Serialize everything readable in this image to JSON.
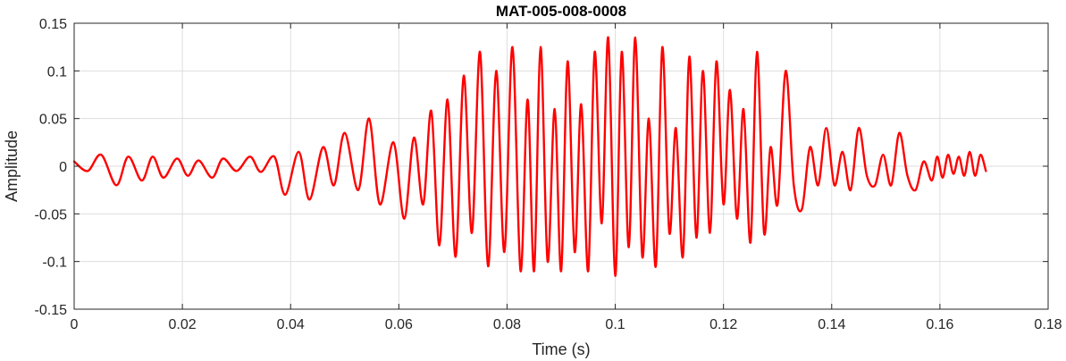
{
  "chart_data": {
    "type": "line",
    "title": "MAT-005-008-0008",
    "xlabel": "Time (s)",
    "ylabel": "Amplitude",
    "xlim": [
      0,
      0.18
    ],
    "ylim": [
      -0.15,
      0.15
    ],
    "grid": true,
    "x_ticks": [
      0,
      0.02,
      0.04,
      0.06,
      0.08,
      0.1,
      0.12,
      0.14,
      0.16,
      0.18
    ],
    "x_tick_labels": [
      "0",
      "0.02",
      "0.04",
      "0.06",
      "0.08",
      "0.1",
      "0.12",
      "0.14",
      "0.16",
      "0.18"
    ],
    "y_ticks": [
      -0.15,
      -0.1,
      -0.05,
      0,
      0.05,
      0.1,
      0.15
    ],
    "y_tick_labels": [
      "-0.15",
      "-0.1",
      "-0.05",
      "0",
      "0.05",
      "0.1",
      "0.15"
    ],
    "series": [
      {
        "color": "#ff0000",
        "x": [
          0,
          0.0025,
          0.005,
          0.0078,
          0.01,
          0.0125,
          0.0145,
          0.0165,
          0.019,
          0.021,
          0.023,
          0.0255,
          0.0275,
          0.03,
          0.0325,
          0.0345,
          0.037,
          0.039,
          0.0415,
          0.0435,
          0.046,
          0.048,
          0.05,
          0.0525,
          0.0545,
          0.0565,
          0.059,
          0.061,
          0.0628,
          0.0645,
          0.066,
          0.0675,
          0.069,
          0.0705,
          0.072,
          0.0735,
          0.075,
          0.0765,
          0.078,
          0.0795,
          0.081,
          0.0825,
          0.0838,
          0.085,
          0.0862,
          0.0875,
          0.0888,
          0.09,
          0.0912,
          0.0925,
          0.0937,
          0.095,
          0.0962,
          0.0975,
          0.0987,
          0.1,
          0.1012,
          0.1025,
          0.1037,
          0.105,
          0.1062,
          0.1075,
          0.1087,
          0.11,
          0.1112,
          0.1125,
          0.1137,
          0.115,
          0.1162,
          0.1175,
          0.1187,
          0.12,
          0.1212,
          0.1225,
          0.1237,
          0.125,
          0.1262,
          0.1275,
          0.1287,
          0.13,
          0.1315,
          0.133,
          0.1345,
          0.136,
          0.1375,
          0.139,
          0.1405,
          0.142,
          0.1435,
          0.145,
          0.1465,
          0.148,
          0.1495,
          0.151,
          0.1525,
          0.154,
          0.1555,
          0.157,
          0.1585,
          0.1595,
          0.1605,
          0.1615,
          0.1625,
          0.1635,
          0.1645,
          0.1655,
          0.1665,
          0.1675,
          0.1685
        ],
        "y": [
          0.005,
          -0.005,
          0.012,
          -0.02,
          0.01,
          -0.015,
          0.01,
          -0.012,
          0.008,
          -0.01,
          0.006,
          -0.012,
          0.008,
          -0.005,
          0.01,
          -0.006,
          0.01,
          -0.03,
          0.015,
          -0.035,
          0.02,
          -0.02,
          0.035,
          -0.025,
          0.05,
          -0.04,
          0.025,
          -0.055,
          0.03,
          -0.04,
          0.058,
          -0.083,
          0.07,
          -0.095,
          0.095,
          -0.07,
          0.12,
          -0.105,
          0.1,
          -0.09,
          0.125,
          -0.11,
          0.07,
          -0.11,
          0.125,
          -0.1,
          0.06,
          -0.11,
          0.11,
          -0.09,
          0.065,
          -0.11,
          0.12,
          -0.06,
          0.135,
          -0.115,
          0.12,
          -0.085,
          0.135,
          -0.095,
          0.05,
          -0.105,
          0.125,
          -0.07,
          0.04,
          -0.095,
          0.115,
          -0.075,
          0.1,
          -0.07,
          0.11,
          -0.04,
          0.08,
          -0.055,
          0.06,
          -0.08,
          0.12,
          -0.07,
          0.02,
          -0.04,
          0.1,
          -0.02,
          -0.045,
          0.02,
          -0.02,
          0.04,
          -0.02,
          0.015,
          -0.025,
          0.04,
          -0.01,
          -0.02,
          0.012,
          -0.02,
          0.035,
          -0.01,
          -0.025,
          0.005,
          -0.015,
          0.01,
          -0.012,
          0.012,
          -0.008,
          0.01,
          -0.01,
          0.015,
          -0.01,
          0.012,
          -0.005
        ]
      }
    ]
  }
}
